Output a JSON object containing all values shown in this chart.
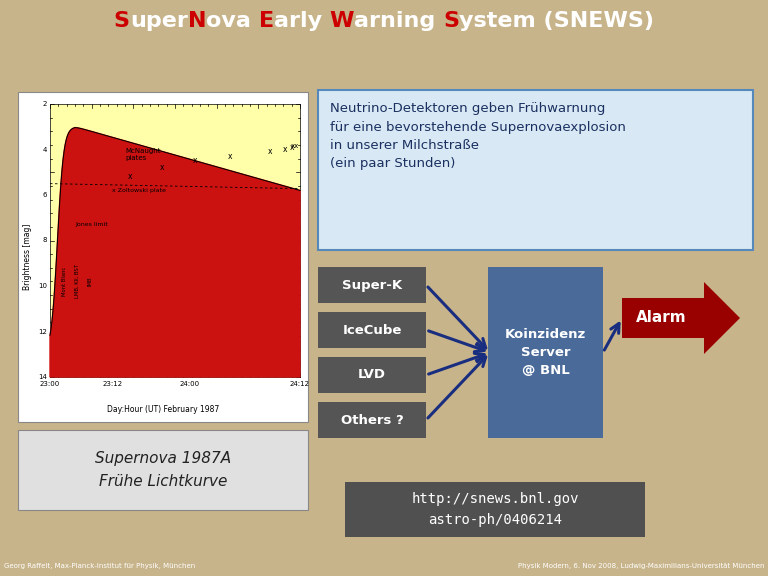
{
  "title_parts": [
    {
      "text": "S",
      "color": "#cc0000"
    },
    {
      "text": "uper",
      "color": "#ffffff"
    },
    {
      "text": "N",
      "color": "#cc0000"
    },
    {
      "text": "ova ",
      "color": "#ffffff"
    },
    {
      "text": "E",
      "color": "#cc0000"
    },
    {
      "text": "arly ",
      "color": "#ffffff"
    },
    {
      "text": "W",
      "color": "#cc0000"
    },
    {
      "text": "arning ",
      "color": "#ffffff"
    },
    {
      "text": "S",
      "color": "#cc0000"
    },
    {
      "text": "ystem (SNEWS)",
      "color": "#ffffff"
    }
  ],
  "header_bg": "#4a7aaa",
  "body_bg": "#c8b48a",
  "footer_bg": "#111111",
  "footer_left": "Georg Raffelt, Max-Planck-Institut für Physik, München",
  "footer_right": "Physik Modern, 6. Nov 2008, Ludwig-Maximilians-Universität München",
  "text_box_bg": "#d8e8f4",
  "text_box_border": "#5588bb",
  "text_box_text": "Neutrino-Detektoren geben Frühwarnung\nfür eine bevorstehende Supernovaexplosion\nin unserer Milchstraße\n(ein paar Stunden)",
  "text_box_color": "#1a3060",
  "detector_labels": [
    "Super-K",
    "IceCube",
    "LVD",
    "Others ?"
  ],
  "detector_bg": "#555555",
  "detector_text": "#ffffff",
  "server_label": "Koinzidenz\nServer\n@ BNL",
  "server_bg": "#4a6a9a",
  "alarm_label": "Alarm",
  "alarm_bg": "#990000",
  "alarm_text": "#ffffff",
  "lightcurve_box_bg": "#e0e0e0",
  "lightcurve_caption": "Supernova 1987A\nFrühe Lichtkurve",
  "url_box_bg": "#505050",
  "url_text": "http://snews.bnl.gov\nastro-ph/0406214",
  "url_text_color": "#ffffff"
}
